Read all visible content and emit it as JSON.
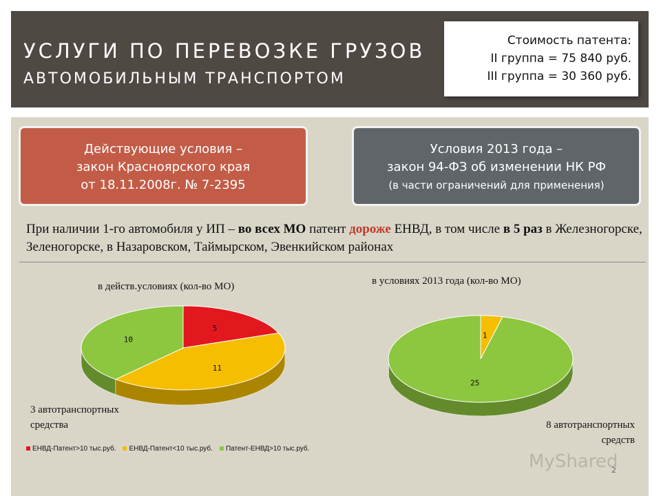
{
  "header": {
    "title": "УСЛУГИ ПО ПЕРЕВОЗКЕ ГРУЗОВ",
    "subtitle": "АВТОМОБИЛЬНЫМ ТРАНСПОРТОМ"
  },
  "cost": {
    "line1": "Стоимость патента:",
    "line2": "II группа = 75 840 руб.",
    "line3": "III группа = 30 360 руб."
  },
  "current": {
    "line1": "Действующие условия –",
    "line2": "закон Красноярского края",
    "line3": "от 18.11.2008г. № 7-2395"
  },
  "future": {
    "line1": "Условия  2013 года –",
    "line2": "закон 94-ФЗ об изменении НК РФ",
    "line3": "(в части ограничений  для применения)"
  },
  "statement": {
    "part1": "При наличии 1-го автомобиля у ИП – ",
    "part2": "во всех МО",
    "part3": " патент ",
    "part4": "дороже",
    "part5": " ЕНВД, в том числе ",
    "part6": "в 5 раз",
    "part7": " в Железногорске, Зеленогорске, в Назаровском, Таймырском, Эвенкийском районах"
  },
  "left_note": {
    "line1": "3 автотранспортных",
    "line2": "средства"
  },
  "right_note": {
    "line1": "8 автотранспортных",
    "line2": "средств"
  },
  "colors": {
    "red": "#e3171e",
    "yellow": "#f6be00",
    "green": "#8dc63f"
  },
  "chart_data": [
    {
      "type": "pie",
      "title": "в действ.условиях (кол-во МО)",
      "categories": [
        "ЕНВД-Патент>10 тыс.руб.",
        "ЕНВД-Патент<10 тыс.руб.",
        "Патент-ЕНВД>10 тыс.руб."
      ],
      "values": [
        5,
        11,
        10
      ],
      "legend": "bottom"
    },
    {
      "type": "pie",
      "title": "в условиях 2013 года (кол-во МО)",
      "categories": [
        "ЕНВД-Патент<10 тыс.руб.",
        "Патент-ЕНВД>10 тыс.руб."
      ],
      "values": [
        1,
        25
      ]
    }
  ],
  "legend": {
    "item1": "ЕНВД-Патент>10 тыс.руб.",
    "item2": "ЕНВД-Патент<10 тыс.руб.",
    "item3": "Патент-ЕНВД>10 тыс.руб."
  },
  "watermark": "MyShared",
  "page_number": "2"
}
